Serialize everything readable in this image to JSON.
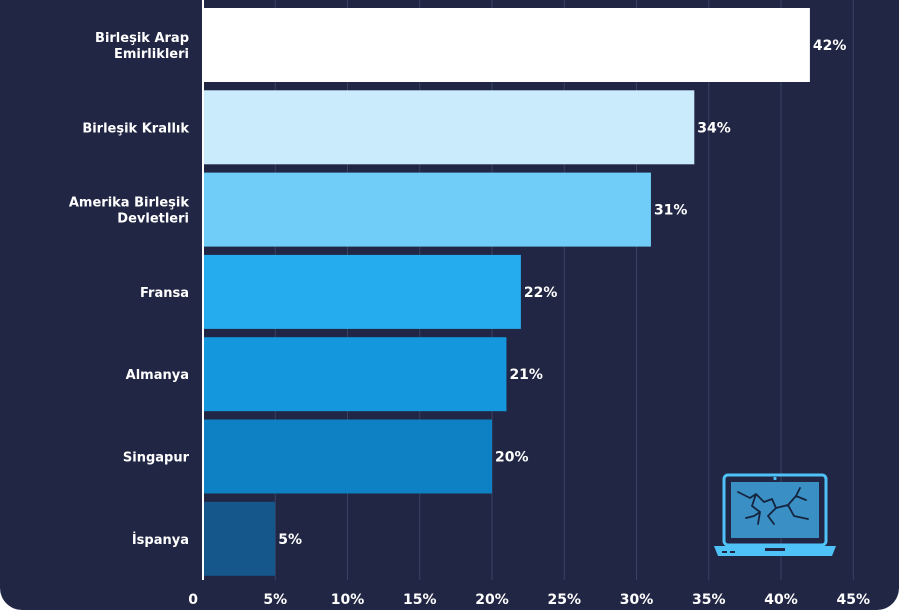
{
  "chart_data": {
    "type": "bar",
    "orientation": "horizontal",
    "categories": [
      [
        "Birleşik Arap",
        "Emirlikleri"
      ],
      [
        "Birleşik Krallık"
      ],
      [
        "Amerika Birleşik",
        "Devletleri"
      ],
      [
        "Fransa"
      ],
      [
        "Almanya"
      ],
      [
        "Singapur"
      ],
      [
        "İspanya"
      ]
    ],
    "values": [
      42,
      34,
      31,
      22,
      21,
      20,
      5
    ],
    "value_labels": [
      "42%",
      "34%",
      "31%",
      "22%",
      "21%",
      "20%",
      "5%"
    ],
    "xlim": [
      0,
      45
    ],
    "xticks": [
      0,
      5,
      10,
      15,
      20,
      25,
      30,
      35,
      40,
      45
    ],
    "xtick_labels": [
      "0",
      "5%",
      "10%",
      "15%",
      "20%",
      "25%",
      "30%",
      "35%",
      "40%",
      "45%"
    ],
    "grid": true,
    "colors": [
      "#ffffff",
      "#c9ebfc",
      "#6fcdf7",
      "#25acef",
      "#1497dc",
      "#0e80c4",
      "#15578b"
    ]
  },
  "theme": {
    "background": "#212644",
    "grid": "#3b4164",
    "text": "#ffffff",
    "accent": "#4fc3f7"
  },
  "decoration": {
    "icon": "cracked-laptop-icon"
  }
}
